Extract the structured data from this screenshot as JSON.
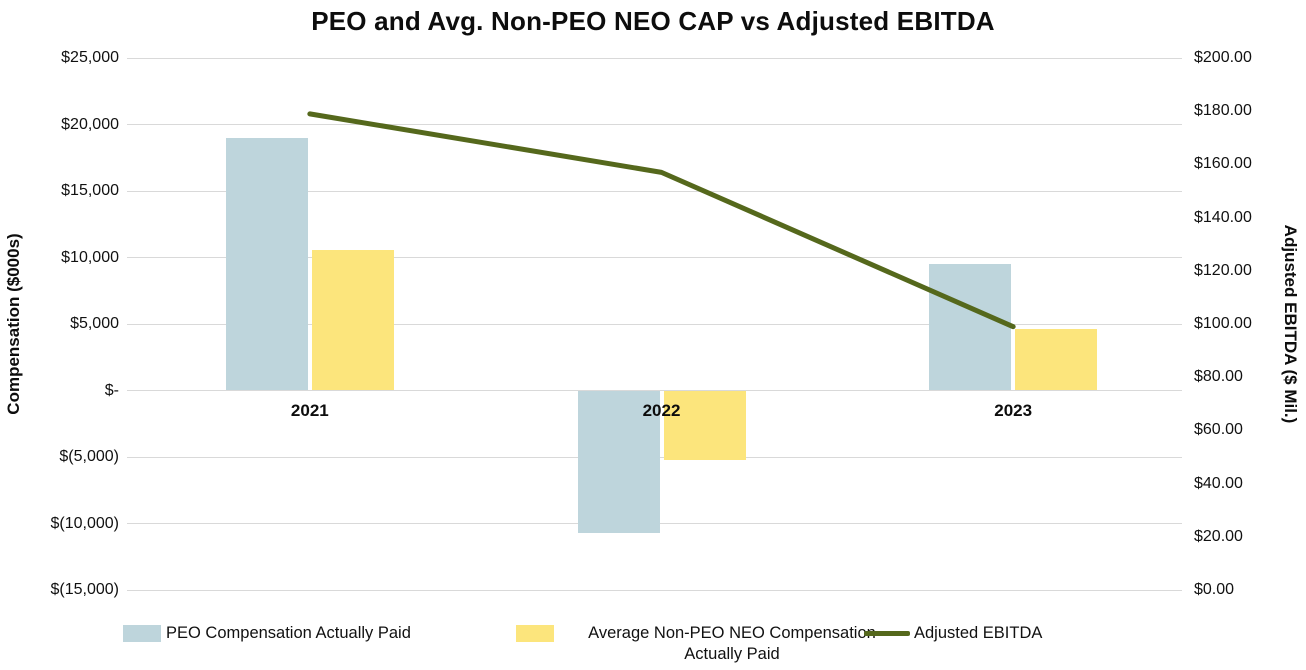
{
  "chart_data": {
    "type": "combo-bar-line",
    "title": "PEO and Avg. Non-PEO NEO CAP vs Adjusted EBITDA",
    "categories": [
      "2021",
      "2022",
      "2023"
    ],
    "series": [
      {
        "name": "PEO Compensation Actually Paid",
        "type": "bar",
        "axis": "left",
        "color": "#bed5dc",
        "values": [
          19000,
          -10700,
          9500
        ]
      },
      {
        "name": "Average Non-PEO NEO Compensation Actually Paid",
        "type": "bar",
        "axis": "left",
        "color": "#fce57c",
        "values": [
          10600,
          -5200,
          4600
        ]
      },
      {
        "name": "Adjusted EBITDA",
        "type": "line",
        "axis": "right",
        "color": "#55681c",
        "values": [
          179,
          157,
          99
        ]
      }
    ],
    "left_axis": {
      "title": "Compensation ($000s)",
      "min": -15000,
      "max": 25000,
      "step": 5000,
      "tick_labels": [
        "$25,000",
        "$20,000",
        "$15,000",
        "$10,000",
        "$5,000",
        "$-",
        "$(5,000)",
        "$(10,000)",
        "$(15,000)"
      ]
    },
    "right_axis": {
      "title": "Adjusted EBITDA ($ Mil.)",
      "min": 0,
      "max": 200,
      "step": 20,
      "tick_labels": [
        "$200.00",
        "$180.00",
        "$160.00",
        "$140.00",
        "$120.00",
        "$100.00",
        "$80.00",
        "$60.00",
        "$40.00",
        "$20.00",
        "$0.00"
      ]
    },
    "gridlines": true,
    "legend_position": "bottom",
    "grid_color": "#d9d9d9",
    "background": "#ffffff"
  }
}
